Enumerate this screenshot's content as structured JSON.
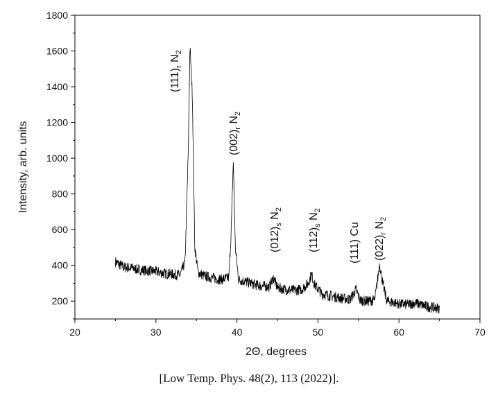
{
  "chart_data": {
    "type": "line",
    "title": "",
    "xlabel": "2Θ, degrees",
    "ylabel": "Intensity, arb. units",
    "xlim": [
      20,
      70
    ],
    "ylim": [
      100,
      1800
    ],
    "x_ticks": [
      20,
      30,
      40,
      50,
      60,
      70
    ],
    "y_ticks": [
      200,
      400,
      600,
      800,
      1000,
      1200,
      1400,
      1600,
      1800
    ],
    "grid": false,
    "line_color": "#000000",
    "series": [
      {
        "x": [
          25,
          26,
          27,
          28,
          29,
          30,
          31,
          32,
          33,
          33.6,
          34.0,
          34.2,
          34.5,
          34.8,
          35.2,
          36,
          37,
          38,
          39,
          39.3,
          39.55,
          39.8,
          40.2,
          41,
          42,
          43,
          44,
          44.5,
          45,
          46,
          47,
          48,
          48.8,
          49.2,
          49.6,
          50.5,
          52,
          53,
          54,
          54.7,
          55.2,
          56,
          57,
          57.4,
          57.6,
          58,
          58.5,
          60,
          61,
          62,
          63,
          64,
          65
        ],
        "y": [
          420,
          390,
          385,
          375,
          370,
          365,
          355,
          350,
          345,
          420,
          1050,
          1630,
          1350,
          500,
          360,
          340,
          330,
          320,
          330,
          600,
          985,
          500,
          320,
          310,
          295,
          285,
          280,
          330,
          275,
          265,
          260,
          265,
          300,
          350,
          290,
          240,
          225,
          215,
          210,
          265,
          205,
          200,
          205,
          330,
          410,
          300,
          200,
          185,
          180,
          190,
          175,
          165,
          160
        ]
      }
    ],
    "annotations": [
      {
        "label": "(111)",
        "sub": "r",
        "tail": " N",
        "sub2": "2"
      },
      {
        "label": "(002)",
        "sub": "r",
        "tail": " N",
        "sub2": "2"
      },
      {
        "label": "(012)",
        "sub": "s",
        "tail": " N",
        "sub2": "2"
      },
      {
        "label": "(112)",
        "sub": "s",
        "tail": " N",
        "sub2": "2"
      },
      {
        "label": "(111) Cu"
      },
      {
        "label": "(022)",
        "sub": "r",
        "tail": " N",
        "sub2": "2"
      }
    ]
  },
  "citation": "[Low Temp. Phys. 48(2), 113 (2022)]."
}
